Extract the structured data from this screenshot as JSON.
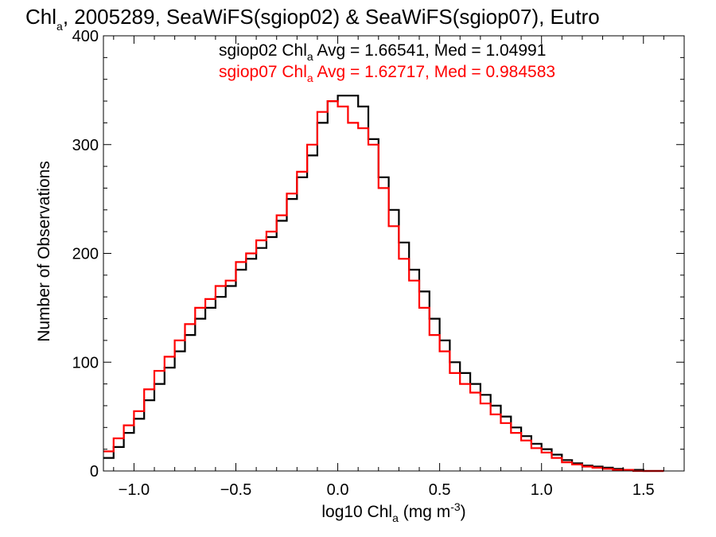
{
  "colors": {
    "background": "#ffffff",
    "series_sgiop02": "#000000",
    "series_sgiop07": "#ff0000"
  },
  "chart_data": {
    "type": "histogram",
    "title": {
      "prefix": "Chl",
      "prefix_subscript": "a",
      "rest": ", 2005289, SeaWiFS(sgiop02) & SeaWiFS(sgiop07), Eutro"
    },
    "xlabel": {
      "prefix": "log10 Chl",
      "subscript": "a",
      "units_pre": " (mg m",
      "units_sup": "-3",
      "units_post": ")"
    },
    "ylabel": "Number of Observations",
    "xlim": [
      -1.15,
      1.7
    ],
    "ylim": [
      0,
      400
    ],
    "x_ticks": [
      -1.0,
      -0.5,
      0.0,
      0.5,
      1.0,
      1.5
    ],
    "x_tick_labels": [
      "−1.0",
      "−0.5",
      "0.0",
      "0.5",
      "1.0",
      "1.5"
    ],
    "y_ticks": [
      0,
      100,
      200,
      300,
      400
    ],
    "y_tick_labels": [
      "0",
      "100",
      "200",
      "300",
      "400"
    ],
    "grid": false,
    "annotations": [
      {
        "prefix": "sgiop02 Chl",
        "subscript": "a",
        "rest": " Avg = 1.66541, Med = 1.04991",
        "color": "#000000"
      },
      {
        "prefix": "sgiop07 Chl",
        "subscript": "a",
        "rest": " Avg = 1.62717, Med = 0.984583",
        "color": "#ff0000"
      }
    ],
    "bin_width": 0.05,
    "series": [
      {
        "name": "sgiop02",
        "color": "#000000",
        "x": [
          -1.15,
          -1.1,
          -1.05,
          -1.0,
          -0.95,
          -0.9,
          -0.85,
          -0.8,
          -0.75,
          -0.7,
          -0.65,
          -0.6,
          -0.55,
          -0.5,
          -0.45,
          -0.4,
          -0.35,
          -0.3,
          -0.25,
          -0.2,
          -0.15,
          -0.1,
          -0.05,
          0.0,
          0.05,
          0.1,
          0.15,
          0.2,
          0.25,
          0.3,
          0.35,
          0.4,
          0.45,
          0.5,
          0.55,
          0.6,
          0.65,
          0.7,
          0.75,
          0.8,
          0.85,
          0.9,
          0.95,
          1.0,
          1.05,
          1.1,
          1.15,
          1.2,
          1.25,
          1.3,
          1.35,
          1.4,
          1.45,
          1.5,
          1.55
        ],
        "values": [
          12,
          22,
          35,
          48,
          65,
          80,
          95,
          110,
          125,
          140,
          150,
          160,
          170,
          185,
          195,
          205,
          215,
          230,
          250,
          270,
          290,
          320,
          340,
          345,
          345,
          335,
          305,
          270,
          240,
          210,
          185,
          165,
          140,
          120,
          100,
          90,
          80,
          70,
          60,
          50,
          40,
          32,
          25,
          20,
          15,
          10,
          7,
          5,
          4,
          3,
          2,
          1,
          1,
          0,
          0
        ]
      },
      {
        "name": "sgiop07",
        "color": "#ff0000",
        "x": [
          -1.15,
          -1.1,
          -1.05,
          -1.0,
          -0.95,
          -0.9,
          -0.85,
          -0.8,
          -0.75,
          -0.7,
          -0.65,
          -0.6,
          -0.55,
          -0.5,
          -0.45,
          -0.4,
          -0.35,
          -0.3,
          -0.25,
          -0.2,
          -0.15,
          -0.1,
          -0.05,
          0.0,
          0.05,
          0.1,
          0.15,
          0.2,
          0.25,
          0.3,
          0.35,
          0.4,
          0.45,
          0.5,
          0.55,
          0.6,
          0.65,
          0.7,
          0.75,
          0.8,
          0.85,
          0.9,
          0.95,
          1.0,
          1.05,
          1.1,
          1.15,
          1.2,
          1.25,
          1.3,
          1.35,
          1.4,
          1.45,
          1.5,
          1.55
        ],
        "values": [
          18,
          30,
          42,
          55,
          75,
          92,
          105,
          120,
          135,
          150,
          158,
          170,
          175,
          192,
          200,
          212,
          220,
          235,
          255,
          275,
          300,
          330,
          340,
          335,
          320,
          315,
          300,
          260,
          225,
          195,
          175,
          150,
          125,
          110,
          90,
          80,
          72,
          62,
          52,
          44,
          35,
          28,
          21,
          17,
          12,
          8,
          6,
          4,
          3,
          2,
          1,
          1,
          0,
          0,
          0
        ]
      }
    ]
  }
}
